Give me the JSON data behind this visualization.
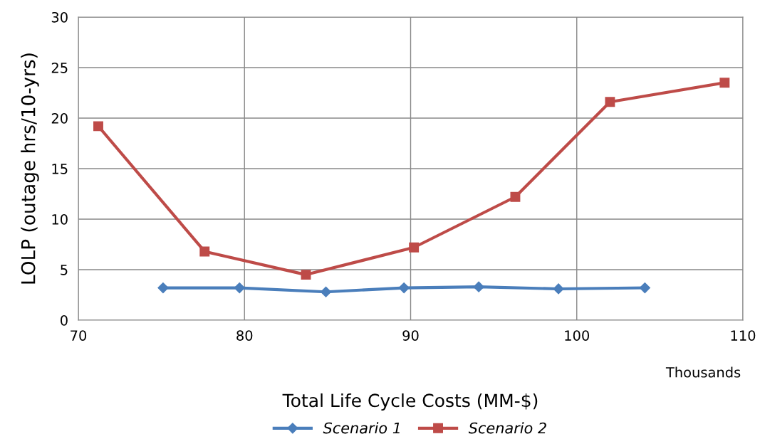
{
  "chart_data": {
    "type": "line",
    "xlabel": "Total Life Cycle Costs (MM-$)",
    "ylabel": "LOLP (outage hrs/10-yrs)",
    "annotations": [
      "Thousands"
    ],
    "xlim": [
      70,
      110
    ],
    "xticks": [
      70,
      80,
      90,
      100,
      110
    ],
    "ylim": [
      0,
      30
    ],
    "yticks": [
      0,
      5,
      10,
      15,
      20,
      25,
      30
    ],
    "grid": true,
    "legend": "bottom",
    "series": [
      {
        "name": "Scenario 1",
        "color": "#4a7ebb",
        "marker": "diamond",
        "x": [
          75.1,
          79.7,
          84.9,
          89.6,
          94.1,
          98.9,
          104.1
        ],
        "values": [
          3.2,
          3.2,
          2.8,
          3.2,
          3.3,
          3.1,
          3.2
        ]
      },
      {
        "name": "Scenario 2",
        "color": "#be4b48",
        "marker": "square",
        "x": [
          71.2,
          77.6,
          83.7,
          90.2,
          96.3,
          102.0,
          108.9
        ],
        "values": [
          19.2,
          6.8,
          4.5,
          7.2,
          12.2,
          21.6,
          23.5
        ]
      }
    ]
  }
}
